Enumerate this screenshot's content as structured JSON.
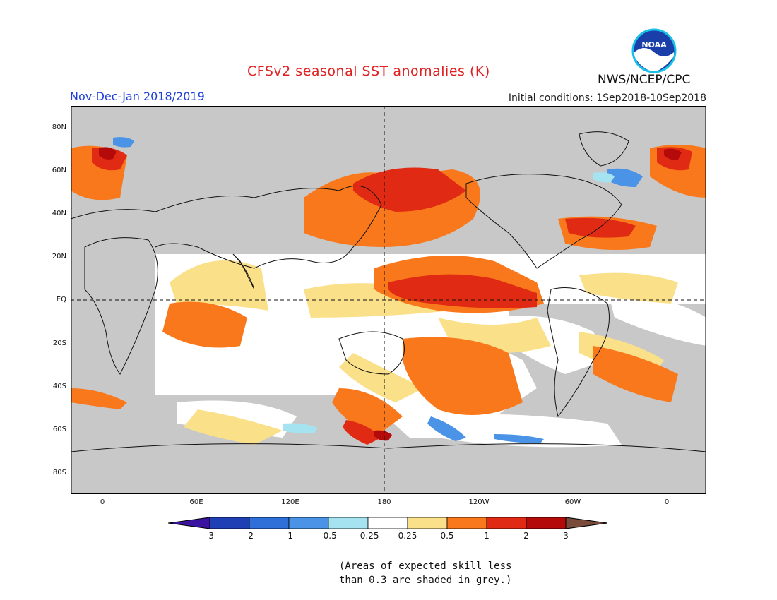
{
  "header": {
    "title": "CFSv2 seasonal SST anomalies (K)",
    "period": "Nov-Dec-Jan 2018/2019",
    "initial_conditions": "Initial conditions: 1Sep2018-10Sep2018",
    "agency": "NWS/NCEP/CPC",
    "logo_text": "NOAA"
  },
  "map": {
    "lat_labels": [
      "80N",
      "60N",
      "40N",
      "20N",
      "EQ",
      "20S",
      "40S",
      "60S",
      "80S"
    ],
    "lon_labels": [
      "0",
      "60E",
      "120E",
      "180",
      "120W",
      "60W",
      "0"
    ],
    "land_color": "#c8c8c8",
    "ocean_color": "#ffffff"
  },
  "colorbar": {
    "labels": [
      "-3",
      "-2",
      "-1",
      "-0.5",
      "-0.25",
      "0.25",
      "0.5",
      "1",
      "2",
      "3"
    ],
    "colors": [
      "#1f3fb4",
      "#2e6fd8",
      "#4a93e6",
      "#a6e3f0",
      "#ffffff",
      "#fbe08a",
      "#f9781c",
      "#e02a14",
      "#b40a0a"
    ],
    "under_color": "#3a14a0",
    "over_color": "#7a4a3a"
  },
  "footnote": {
    "line1": "(Areas of expected skill less",
    "line2": "than 0.3 are shaded in grey.)"
  }
}
